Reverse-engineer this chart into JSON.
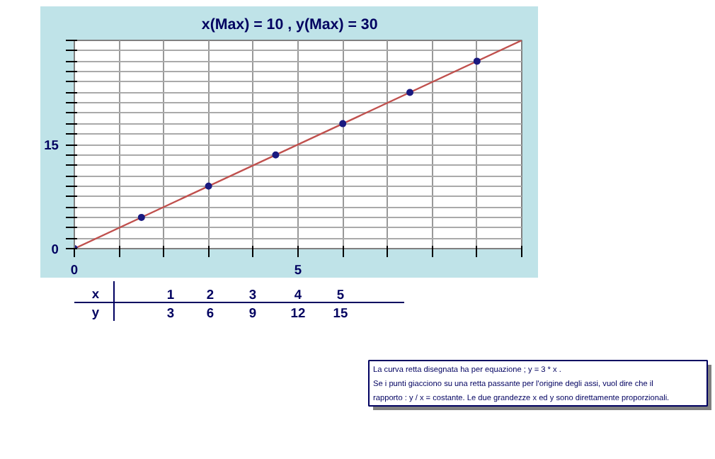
{
  "chart_data": {
    "type": "line",
    "title": "x(Max) = 10    , y(Max) =  30",
    "series": [
      {
        "color": "#c0504d",
        "x": [
          0,
          10
        ],
        "values": [
          0,
          30
        ],
        "marker": "none"
      },
      {
        "type": "scatter",
        "color": "#1a1a80",
        "x": [
          0,
          1.5,
          3,
          4.5,
          6,
          7.5,
          9
        ],
        "values": [
          0,
          4.5,
          9,
          13.5,
          18,
          22.5,
          27
        ],
        "marker": "circle"
      }
    ],
    "xlim": [
      0,
      10
    ],
    "ylim": [
      0,
      30
    ],
    "xticks": [
      0,
      {
        "value": 1,
        "label": null
      },
      {
        "value": 2,
        "label": null
      },
      {
        "value": 3,
        "label": null
      },
      {
        "value": 4,
        "label": null
      },
      5,
      {
        "value": 6,
        "label": null
      },
      {
        "value": 7,
        "label": null
      },
      {
        "value": 8,
        "label": null
      },
      {
        "value": 9,
        "label": null
      },
      {
        "value": 10,
        "label": null
      }
    ],
    "yticks": [
      0,
      {
        "value": 1.5,
        "label": null
      },
      {
        "value": 3,
        "label": null
      },
      {
        "value": 4.5,
        "label": null
      },
      {
        "value": 6,
        "label": null
      },
      {
        "value": 7.5,
        "label": null
      },
      {
        "value": 9,
        "label": null
      },
      {
        "value": 10.5,
        "label": null
      },
      {
        "value": 12,
        "label": null
      },
      {
        "value": 13.5,
        "label": null
      },
      15,
      {
        "value": 16.5,
        "label": null
      },
      {
        "value": 18,
        "label": null
      },
      {
        "value": 19.5,
        "label": null
      },
      {
        "value": 21,
        "label": null
      },
      {
        "value": 22.5,
        "label": null
      },
      {
        "value": 24,
        "label": null
      },
      {
        "value": 25.5,
        "label": null
      },
      {
        "value": 27,
        "label": null
      },
      {
        "value": 28.5,
        "label": null
      },
      {
        "value": 30,
        "label": null
      }
    ],
    "grid": true,
    "annotations": [
      "x 1 2 3 4 5",
      "y 3 6 9 12 15",
      "La curva retta disegnata ha per equazione ; y = 3 * x .",
      "Se  i  punti  giacciono  su una retta passante  per  l'origine  degli  assi, vuol dire che il",
      "rapporto : y / x  =  costante.  Le due grandezze x ed y sono direttamente proporzionali."
    ]
  }
}
